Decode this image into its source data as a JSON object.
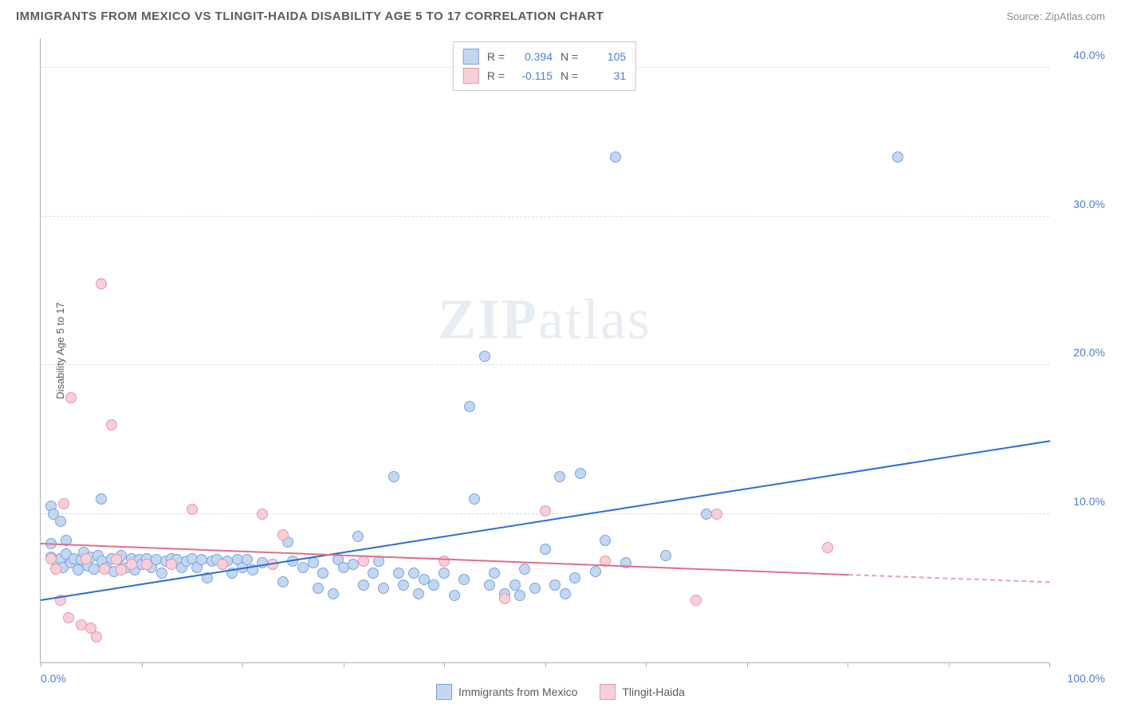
{
  "title": "IMMIGRANTS FROM MEXICO VS TLINGIT-HAIDA DISABILITY AGE 5 TO 17 CORRELATION CHART",
  "source": "Source: ZipAtlas.com",
  "watermark": {
    "part1": "ZIP",
    "part2": "atlas"
  },
  "chart": {
    "type": "scatter",
    "ylabel": "Disability Age 5 to 17",
    "xlim": [
      0,
      100
    ],
    "ylim": [
      0,
      42
    ],
    "yticks": [
      {
        "v": 10,
        "label": "10.0%"
      },
      {
        "v": 20,
        "label": "20.0%"
      },
      {
        "v": 30,
        "label": "30.0%"
      },
      {
        "v": 40,
        "label": "40.0%"
      }
    ],
    "xticks": {
      "left": "0.0%",
      "right": "100.0%"
    },
    "xtick_marks": [
      0,
      10,
      20,
      30,
      40,
      50,
      60,
      70,
      80,
      90,
      100
    ],
    "grid_color": "#dcdcdc",
    "axis_color": "#b0b0b0",
    "background_color": "#ffffff",
    "marker_radius": 7,
    "marker_stroke": 1,
    "series": [
      {
        "name": "Immigrants from Mexico",
        "fill": "#c3d7f1",
        "stroke": "#7aa3de",
        "r": "0.394",
        "n": "105",
        "trend": {
          "x1": 0,
          "y1": 4.3,
          "x2": 100,
          "y2": 15.0,
          "color": "#2e6bd6",
          "width": 2
        },
        "points": [
          [
            1,
            7.1
          ],
          [
            1.5,
            6.8
          ],
          [
            2,
            7.0
          ],
          [
            2.2,
            6.4
          ],
          [
            2.5,
            7.3
          ],
          [
            3,
            6.7
          ],
          [
            3.3,
            7.0
          ],
          [
            3.7,
            6.2
          ],
          [
            4,
            6.9
          ],
          [
            4.3,
            7.4
          ],
          [
            4.7,
            6.5
          ],
          [
            5,
            7.1
          ],
          [
            5.3,
            6.3
          ],
          [
            5.7,
            7.2
          ],
          [
            6,
            11.0
          ],
          [
            6.1,
            6.8
          ],
          [
            6.5,
            6.4
          ],
          [
            7,
            7.0
          ],
          [
            7.3,
            6.1
          ],
          [
            7.7,
            6.9
          ],
          [
            8,
            7.2
          ],
          [
            8.5,
            6.4
          ],
          [
            9,
            7.0
          ],
          [
            9.3,
            6.2
          ],
          [
            9.8,
            6.9
          ],
          [
            10,
            6.6
          ],
          [
            10.5,
            7.0
          ],
          [
            11,
            6.4
          ],
          [
            11.5,
            6.9
          ],
          [
            12,
            6.0
          ],
          [
            12.4,
            6.8
          ],
          [
            13,
            7.0
          ],
          [
            13.5,
            6.9
          ],
          [
            14,
            6.4
          ],
          [
            14.5,
            6.8
          ],
          [
            15,
            7.0
          ],
          [
            15.5,
            6.4
          ],
          [
            16,
            6.9
          ],
          [
            16.5,
            5.7
          ],
          [
            17,
            6.8
          ],
          [
            17.5,
            6.9
          ],
          [
            18,
            6.6
          ],
          [
            18.5,
            6.8
          ],
          [
            19,
            6.0
          ],
          [
            19.5,
            6.9
          ],
          [
            20,
            6.4
          ],
          [
            20.5,
            6.9
          ],
          [
            21,
            6.2
          ],
          [
            22,
            6.7
          ],
          [
            23,
            6.6
          ],
          [
            24,
            5.4
          ],
          [
            24.5,
            8.1
          ],
          [
            25,
            6.8
          ],
          [
            26,
            6.4
          ],
          [
            27,
            6.7
          ],
          [
            27.5,
            5.0
          ],
          [
            28,
            6.0
          ],
          [
            29,
            4.6
          ],
          [
            29.5,
            6.9
          ],
          [
            30,
            6.4
          ],
          [
            31,
            6.6
          ],
          [
            31.5,
            8.5
          ],
          [
            32,
            5.2
          ],
          [
            33,
            6.0
          ],
          [
            33.5,
            6.8
          ],
          [
            34,
            5.0
          ],
          [
            35,
            12.5
          ],
          [
            35.5,
            6.0
          ],
          [
            36,
            5.2
          ],
          [
            37,
            6.0
          ],
          [
            37.5,
            4.6
          ],
          [
            38,
            5.6
          ],
          [
            39,
            5.2
          ],
          [
            40,
            6.0
          ],
          [
            41,
            4.5
          ],
          [
            42,
            5.6
          ],
          [
            42.5,
            17.2
          ],
          [
            43,
            11.0
          ],
          [
            44,
            20.6
          ],
          [
            44.5,
            5.2
          ],
          [
            45,
            6.0
          ],
          [
            46,
            4.6
          ],
          [
            47,
            5.2
          ],
          [
            47.5,
            4.5
          ],
          [
            48,
            6.3
          ],
          [
            49,
            5.0
          ],
          [
            50,
            7.6
          ],
          [
            51,
            5.2
          ],
          [
            51.5,
            12.5
          ],
          [
            52,
            4.6
          ],
          [
            53,
            5.7
          ],
          [
            53.5,
            12.7
          ],
          [
            55,
            6.1
          ],
          [
            56,
            8.2
          ],
          [
            57,
            34.0
          ],
          [
            58,
            6.7
          ],
          [
            62,
            7.2
          ],
          [
            66,
            10.0
          ],
          [
            85,
            34.0
          ],
          [
            1,
            10.5
          ],
          [
            1.3,
            10.0
          ],
          [
            2,
            9.5
          ],
          [
            2.5,
            8.2
          ],
          [
            1,
            8.0
          ]
        ]
      },
      {
        "name": "Tlingit-Haida",
        "fill": "#f6d0d8",
        "stroke": "#e695a8",
        "r": "-0.115",
        "n": "31",
        "trend": {
          "x1": 0,
          "y1": 8.1,
          "x2": 80,
          "y2": 6.0,
          "color": "#e36d8a",
          "width": 2
        },
        "trend_dash": {
          "x1": 80,
          "y1": 6.0,
          "x2": 100,
          "y2": 5.5,
          "color": "#e9a0b2",
          "width": 2
        },
        "points": [
          [
            1,
            7.0
          ],
          [
            1.5,
            6.3
          ],
          [
            2,
            4.2
          ],
          [
            2.3,
            10.7
          ],
          [
            2.8,
            3.0
          ],
          [
            3,
            17.8
          ],
          [
            4,
            2.5
          ],
          [
            4.5,
            7.0
          ],
          [
            5,
            2.3
          ],
          [
            5.5,
            1.7
          ],
          [
            6,
            25.5
          ],
          [
            6.3,
            6.3
          ],
          [
            7,
            16.0
          ],
          [
            7.5,
            6.9
          ],
          [
            8,
            6.2
          ],
          [
            9,
            6.6
          ],
          [
            10.5,
            6.6
          ],
          [
            13,
            6.6
          ],
          [
            15,
            10.3
          ],
          [
            18,
            6.6
          ],
          [
            22,
            10.0
          ],
          [
            23,
            6.6
          ],
          [
            24,
            8.6
          ],
          [
            32,
            6.8
          ],
          [
            40,
            6.8
          ],
          [
            46,
            4.3
          ],
          [
            50,
            10.2
          ],
          [
            56,
            6.8
          ],
          [
            65,
            4.2
          ],
          [
            67,
            10.0
          ],
          [
            78,
            7.7
          ]
        ]
      }
    ]
  },
  "legend": [
    {
      "label": "Immigrants from Mexico",
      "fill": "#c3d7f1",
      "stroke": "#7aa3de"
    },
    {
      "label": "Tlingit-Haida",
      "fill": "#f6d0d8",
      "stroke": "#e695a8"
    }
  ],
  "stat_labels": {
    "r": "R =",
    "n": "N ="
  }
}
